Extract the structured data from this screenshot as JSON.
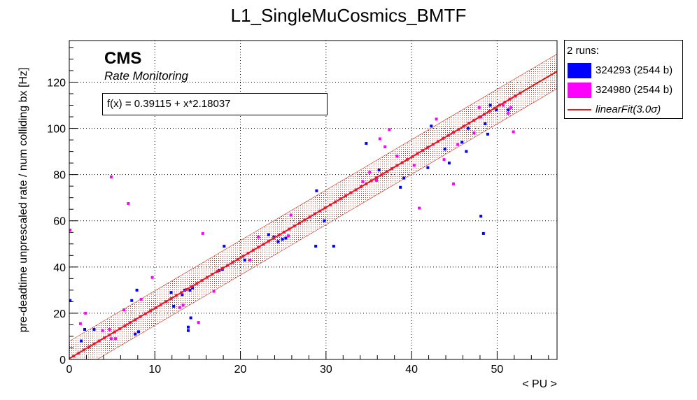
{
  "chart_data": {
    "type": "scatter",
    "title": "L1_SingleMuCosmics_BMTF",
    "xlabel": "< PU >",
    "ylabel": "pre-deadtime unprescaled rate / num colliding bx [Hz]",
    "xlim": [
      0,
      57
    ],
    "ylim": [
      0,
      138
    ],
    "xticks": [
      0,
      10,
      20,
      30,
      40,
      50
    ],
    "yticks": [
      0,
      20,
      40,
      60,
      80,
      100,
      120
    ],
    "grid": true,
    "legend_position": "right, outside plot",
    "legend_header": "2 runs:",
    "cms_label": "CMS",
    "cms_sublabel": "Rate Monitoring",
    "fit_text": "f(x) = 0.39115 + x*2.18037",
    "fit": {
      "label": "linearFit(3.0σ)",
      "intercept": 0.39115,
      "slope": 2.18037,
      "band_halfwidth": 7.5,
      "color": "#e0191a"
    },
    "series": [
      {
        "name": "324293 (2544 b)",
        "color": "#0000ff",
        "points": [
          [
            0.1,
            25.5
          ],
          [
            1.4,
            8
          ],
          [
            1.8,
            13
          ],
          [
            2.9,
            13
          ],
          [
            7.3,
            25.5
          ],
          [
            7.7,
            11
          ],
          [
            7.9,
            30
          ],
          [
            8.1,
            12
          ],
          [
            11.9,
            29
          ],
          [
            12.2,
            23
          ],
          [
            13.2,
            28
          ],
          [
            13.5,
            30
          ],
          [
            13.9,
            14
          ],
          [
            13.9,
            12.5
          ],
          [
            14.1,
            30
          ],
          [
            14.2,
            18
          ],
          [
            14.4,
            31
          ],
          [
            17.5,
            38.5
          ],
          [
            17.9,
            39
          ],
          [
            18.1,
            49
          ],
          [
            20.5,
            43
          ],
          [
            23.3,
            54
          ],
          [
            23.9,
            53
          ],
          [
            24.4,
            51
          ],
          [
            24.9,
            52
          ],
          [
            25.3,
            52.5
          ],
          [
            28.9,
            73
          ],
          [
            28.8,
            49
          ],
          [
            29.8,
            60
          ],
          [
            30.9,
            49
          ],
          [
            34.7,
            93.5
          ],
          [
            36.2,
            82
          ],
          [
            38.7,
            74.5
          ],
          [
            39.1,
            78.5
          ],
          [
            41.9,
            83
          ],
          [
            42.3,
            101
          ],
          [
            43.9,
            91
          ],
          [
            44.4,
            85
          ],
          [
            45.9,
            94
          ],
          [
            46.4,
            90
          ],
          [
            46.6,
            100
          ],
          [
            48.1,
            62
          ],
          [
            48.4,
            54.5
          ],
          [
            48.6,
            102
          ],
          [
            48.9,
            97.5
          ],
          [
            49.2,
            110
          ],
          [
            49.9,
            108
          ],
          [
            51.3,
            108
          ]
        ]
      },
      {
        "name": "324980 (2544 b)",
        "color": "#ff00ff",
        "points": [
          [
            0.1,
            56
          ],
          [
            1.3,
            15.5
          ],
          [
            1.9,
            20
          ],
          [
            3.9,
            12.5
          ],
          [
            4.7,
            13
          ],
          [
            4.9,
            9
          ],
          [
            5.4,
            9
          ],
          [
            4.9,
            79
          ],
          [
            6.4,
            21.5
          ],
          [
            6.9,
            67.5
          ],
          [
            8.4,
            26
          ],
          [
            9.7,
            35.5
          ],
          [
            12.9,
            22.5
          ],
          [
            13.3,
            23.5
          ],
          [
            15.1,
            16
          ],
          [
            15.6,
            54.5
          ],
          [
            16.9,
            29.5
          ],
          [
            21.1,
            43
          ],
          [
            22.1,
            53
          ],
          [
            25.6,
            53.5
          ],
          [
            25.9,
            62.5
          ],
          [
            34.3,
            77
          ],
          [
            35.1,
            81
          ],
          [
            35.9,
            77.5
          ],
          [
            36.3,
            95.5
          ],
          [
            36.9,
            92
          ],
          [
            37.4,
            99.5
          ],
          [
            38.3,
            88
          ],
          [
            40.3,
            84
          ],
          [
            40.9,
            65.5
          ],
          [
            42.9,
            104
          ],
          [
            43.8,
            86.5
          ],
          [
            44.9,
            76
          ],
          [
            45.4,
            93
          ],
          [
            47.3,
            98
          ],
          [
            47.9,
            109
          ],
          [
            48.1,
            105
          ],
          [
            50.7,
            110
          ],
          [
            51.3,
            106.5
          ],
          [
            51.9,
            98.5
          ],
          [
            52.1,
            114
          ],
          [
            51.6,
            109
          ]
        ]
      }
    ]
  }
}
